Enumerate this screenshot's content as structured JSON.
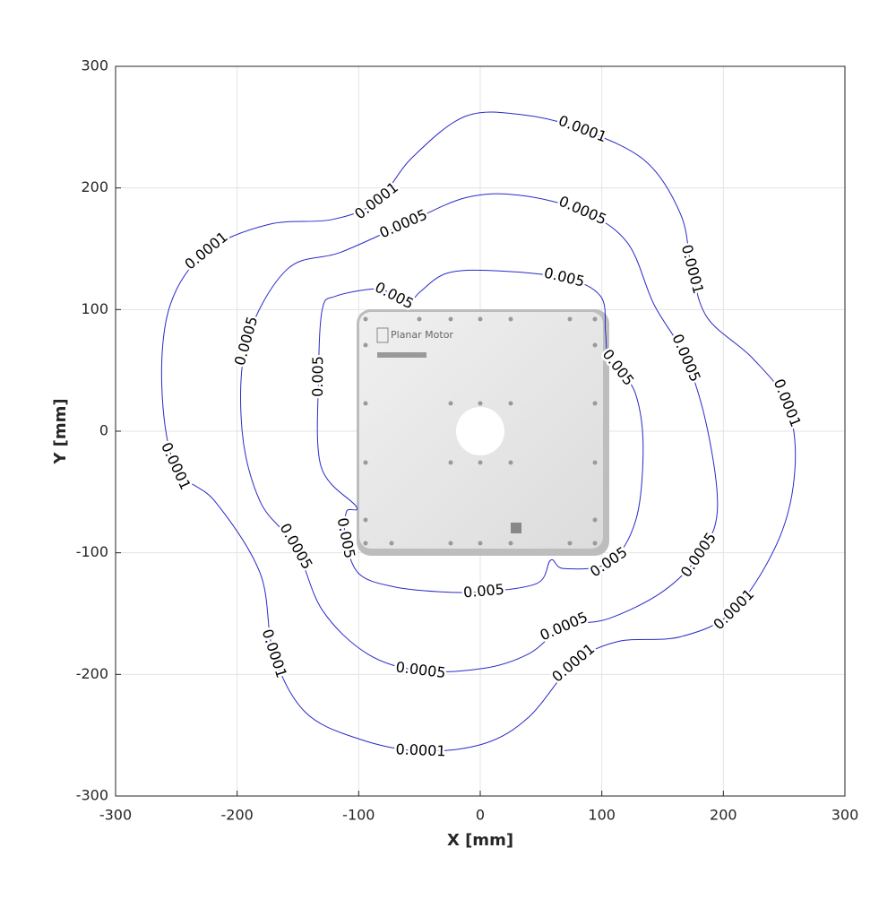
{
  "chart_data": {
    "type": "contour",
    "xlabel": "X [mm]",
    "ylabel": "Y [mm]",
    "xlim": [
      -300,
      300
    ],
    "ylim": [
      -300,
      300
    ],
    "xticks": [
      -300,
      -200,
      -100,
      0,
      100,
      200,
      300
    ],
    "yticks": [
      -300,
      -200,
      -100,
      0,
      100,
      200,
      300
    ],
    "grid": true,
    "line_color": "#2a2ac8",
    "annotations": [
      "Planar Motor"
    ],
    "contours": [
      {
        "level": 0.0001,
        "x": [
          36,
          84,
          136,
          165,
          174,
          187,
          224,
          252,
          259,
          246,
          209,
          165,
          113,
          77,
          40,
          3,
          -49,
          -100,
          -144,
          -170,
          -181,
          -218,
          -251,
          -262,
          -255,
          -225,
          -174,
          -122,
          -85,
          -56,
          -12
        ],
        "y": [
          260,
          248,
          222,
          178,
          133,
          93,
          60,
          23,
          -29,
          -88,
          -147,
          -169,
          -173,
          -191,
          -235,
          -257,
          -263,
          -253,
          -231,
          -183,
          -117,
          -58,
          -29,
          38,
          104,
          148,
          170,
          174,
          189,
          225,
          259
        ]
      },
      {
        "level": 0.0005,
        "x": [
          32,
          84,
          121,
          143,
          169,
          187,
          195,
          180,
          150,
          106,
          69,
          40,
          3,
          -49,
          -93,
          -130,
          -152,
          -181,
          -196,
          -192,
          -159,
          -115,
          -63,
          -12
        ],
        "y": [
          194,
          181,
          155,
          104,
          60,
          1,
          -66,
          -102,
          -132,
          -154,
          -161,
          -183,
          -195,
          -197,
          -183,
          -147,
          -95,
          -58,
          1,
          74,
          133,
          147,
          170,
          192
        ]
      },
      {
        "level": 0.005,
        "x": [
          10,
          69,
          99,
          103,
          105,
          113,
          128,
          134,
          128,
          106,
          69,
          58,
          47,
          3,
          -34,
          -71,
          -100,
          -111,
          -110,
          -102,
          -131,
          -133,
          -130,
          -119,
          -85,
          -71,
          -60,
          -49,
          -27
        ],
        "y": [
          132,
          126,
          111,
          82,
          60,
          52,
          30,
          -14,
          -73,
          -108,
          -113,
          -106,
          -125,
          -132,
          -132,
          -128,
          -117,
          -88,
          -66,
          -62,
          -29,
          45,
          100,
          111,
          117,
          111,
          104,
          115,
          130
        ]
      }
    ]
  }
}
